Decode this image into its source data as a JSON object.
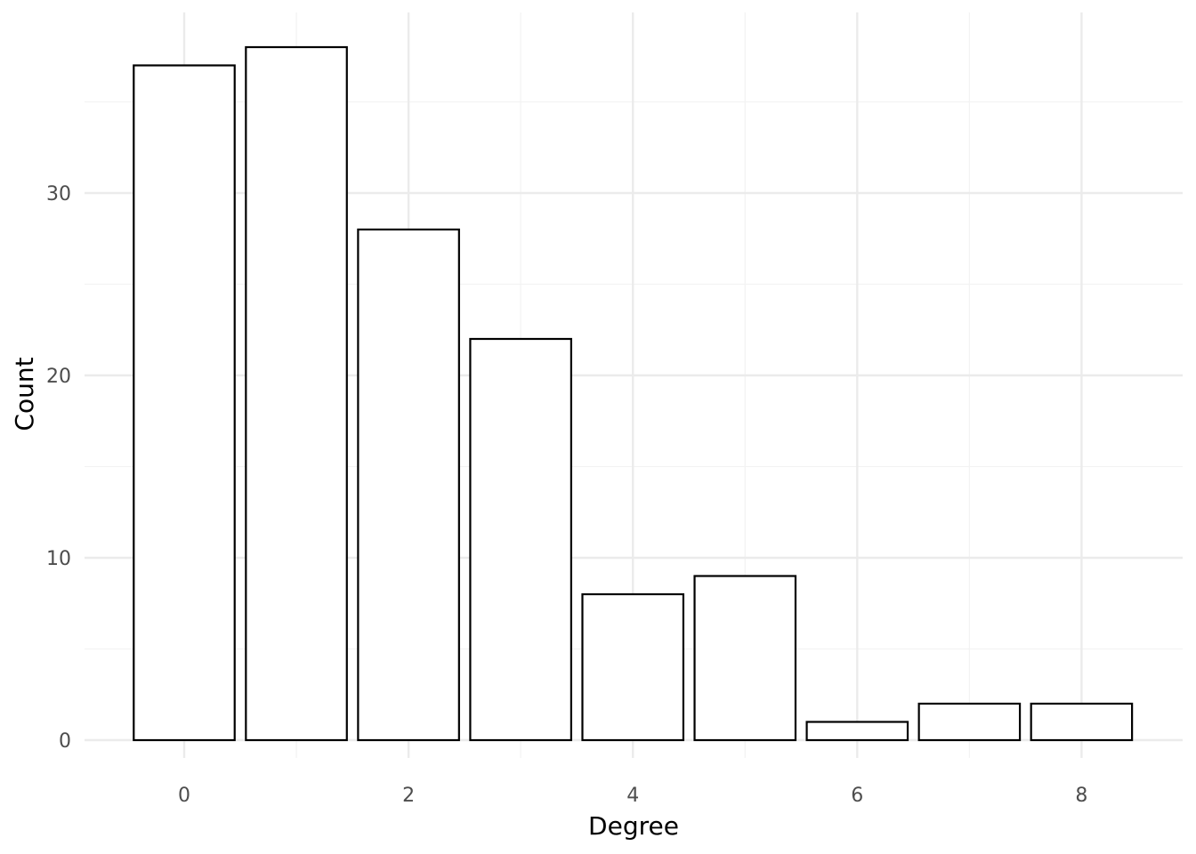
{
  "chart_data": {
    "type": "bar",
    "title": "",
    "xlabel": "Degree",
    "ylabel": "Count",
    "categories": [
      0,
      1,
      2,
      3,
      4,
      5,
      6,
      7,
      8
    ],
    "values": [
      37,
      38,
      28,
      22,
      8,
      9,
      1,
      2,
      2
    ],
    "x_ticks": [
      0,
      2,
      4,
      6,
      8
    ],
    "y_ticks": [
      0,
      10,
      20,
      30
    ],
    "xlim": [
      -0.5,
      8.5
    ],
    "ylim": [
      0,
      38
    ],
    "grid": true,
    "legend": "none",
    "colors": {
      "bar_fill": "#ffffff",
      "bar_stroke": "#000000",
      "grid_major": "#ebebeb",
      "grid_minor": "#f3f3f3",
      "tick_text": "#4d4d4d"
    }
  }
}
